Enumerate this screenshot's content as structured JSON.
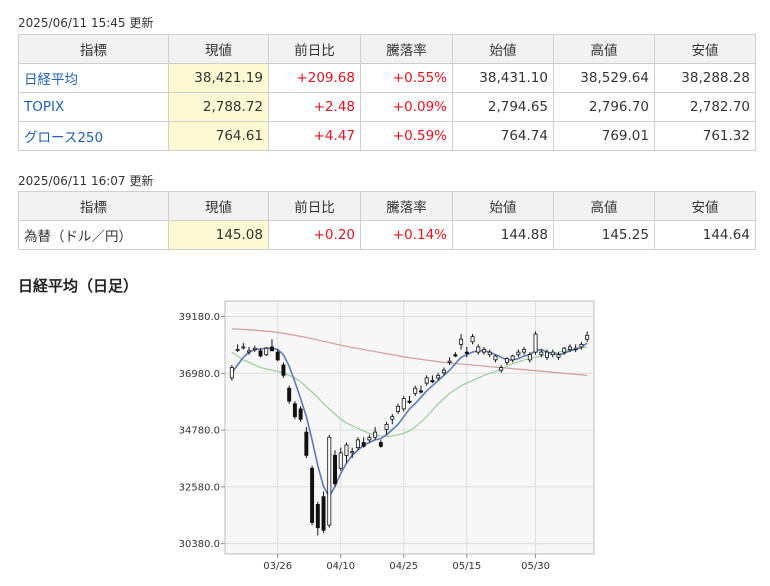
{
  "section1": {
    "timestamp": "2025/06/11 15:45 更新",
    "headers": [
      "指標",
      "現値",
      "前日比",
      "騰落率",
      "始値",
      "高値",
      "安値"
    ],
    "rows": [
      {
        "name": "日経平均",
        "current": "38,421.19",
        "change": "+209.68",
        "pct": "+0.55%",
        "open": "38,431.10",
        "high": "38,529.64",
        "low": "38,288.28"
      },
      {
        "name": "TOPIX",
        "current": "2,788.72",
        "change": "+2.48",
        "pct": "+0.09%",
        "open": "2,794.65",
        "high": "2,796.70",
        "low": "2,782.70"
      },
      {
        "name": "グロース250",
        "current": "764.61",
        "change": "+4.47",
        "pct": "+0.59%",
        "open": "764.74",
        "high": "769.01",
        "low": "761.32"
      }
    ]
  },
  "section2": {
    "timestamp": "2025/06/11 16:07 更新",
    "headers": [
      "指標",
      "現値",
      "前日比",
      "騰落率",
      "始値",
      "高値",
      "安値"
    ],
    "rows": [
      {
        "name": "為替（ドル／円）",
        "current": "145.08",
        "change": "+0.20",
        "pct": "+0.14%",
        "open": "144.88",
        "high": "145.25",
        "low": "144.64"
      }
    ]
  },
  "chart_heading": "日経平均（日足）",
  "colors": {
    "positive": "#e0141f",
    "link": "#1f5fb4",
    "highlight": "#fdf9d3",
    "ma_short": "#5b7ab8",
    "ma_mid": "#9fd09f",
    "ma_long": "#d8a0a0"
  },
  "chart_data": {
    "type": "candlestick",
    "title": "",
    "xlabel": "",
    "ylabel": "",
    "ylim": [
      29980,
      39780
    ],
    "yticks": [
      "39180.0",
      "36980.0",
      "34780.0",
      "32580.0",
      "30380.0"
    ],
    "xticks": [
      {
        "label": "03/26",
        "index": 8
      },
      {
        "label": "04/10",
        "index": 19
      },
      {
        "label": "04/25",
        "index": 30
      },
      {
        "label": "05/15",
        "index": 41
      },
      {
        "label": "05/30",
        "index": 53
      }
    ],
    "grid": true,
    "candles": [
      {
        "o": 36800,
        "h": 37300,
        "l": 36700,
        "c": 37200
      },
      {
        "o": 37900,
        "h": 38100,
        "l": 37800,
        "c": 37900
      },
      {
        "o": 38000,
        "h": 38150,
        "l": 37900,
        "c": 38000
      },
      {
        "o": 37800,
        "h": 38000,
        "l": 37700,
        "c": 37850
      },
      {
        "o": 37900,
        "h": 38050,
        "l": 37800,
        "c": 37950
      },
      {
        "o": 37850,
        "h": 37950,
        "l": 37600,
        "c": 37650
      },
      {
        "o": 37700,
        "h": 38000,
        "l": 37650,
        "c": 37950
      },
      {
        "o": 38000,
        "h": 38300,
        "l": 37900,
        "c": 37850
      },
      {
        "o": 37800,
        "h": 37900,
        "l": 37450,
        "c": 37500
      },
      {
        "o": 37300,
        "h": 37400,
        "l": 36800,
        "c": 36900
      },
      {
        "o": 36400,
        "h": 36500,
        "l": 35800,
        "c": 35900
      },
      {
        "o": 35800,
        "h": 35900,
        "l": 35200,
        "c": 35300
      },
      {
        "o": 35600,
        "h": 35700,
        "l": 35100,
        "c": 35200
      },
      {
        "o": 34700,
        "h": 34900,
        "l": 33700,
        "c": 33800
      },
      {
        "o": 33300,
        "h": 33400,
        "l": 31100,
        "c": 31200
      },
      {
        "o": 31900,
        "h": 32000,
        "l": 30700,
        "c": 31000
      },
      {
        "o": 32200,
        "h": 32400,
        "l": 30800,
        "c": 30900
      },
      {
        "o": 31100,
        "h": 34600,
        "l": 31000,
        "c": 34500
      },
      {
        "o": 33800,
        "h": 34000,
        "l": 32600,
        "c": 32700
      },
      {
        "o": 33300,
        "h": 34100,
        "l": 33200,
        "c": 33900
      },
      {
        "o": 33800,
        "h": 34300,
        "l": 33500,
        "c": 34200
      },
      {
        "o": 33900,
        "h": 34100,
        "l": 33700,
        "c": 33950
      },
      {
        "o": 34100,
        "h": 34500,
        "l": 34000,
        "c": 34400
      },
      {
        "o": 34300,
        "h": 34500,
        "l": 34100,
        "c": 34150
      },
      {
        "o": 34400,
        "h": 34600,
        "l": 34300,
        "c": 34500
      },
      {
        "o": 34500,
        "h": 34900,
        "l": 34400,
        "c": 34700
      },
      {
        "o": 34300,
        "h": 34400,
        "l": 34100,
        "c": 34150
      },
      {
        "o": 34800,
        "h": 35100,
        "l": 34600,
        "c": 35000
      },
      {
        "o": 35200,
        "h": 35400,
        "l": 35000,
        "c": 35300
      },
      {
        "o": 35500,
        "h": 35800,
        "l": 35400,
        "c": 35700
      },
      {
        "o": 35600,
        "h": 36100,
        "l": 35500,
        "c": 36000
      },
      {
        "o": 35900,
        "h": 36100,
        "l": 35800,
        "c": 35850
      },
      {
        "o": 36200,
        "h": 36500,
        "l": 36100,
        "c": 36400
      },
      {
        "o": 36300,
        "h": 36500,
        "l": 36200,
        "c": 36250
      },
      {
        "o": 36600,
        "h": 36900,
        "l": 36500,
        "c": 36800
      },
      {
        "o": 36700,
        "h": 36900,
        "l": 36600,
        "c": 36650
      },
      {
        "o": 36800,
        "h": 37000,
        "l": 36700,
        "c": 36900
      },
      {
        "o": 37000,
        "h": 37200,
        "l": 36900,
        "c": 37100
      },
      {
        "o": 37400,
        "h": 37600,
        "l": 37300,
        "c": 37450
      },
      {
        "o": 37700,
        "h": 37800,
        "l": 37600,
        "c": 37650
      },
      {
        "o": 38100,
        "h": 38500,
        "l": 37900,
        "c": 38300
      },
      {
        "o": 37800,
        "h": 38000,
        "l": 37600,
        "c": 37750
      },
      {
        "o": 38200,
        "h": 38500,
        "l": 38100,
        "c": 38400
      },
      {
        "o": 37800,
        "h": 38100,
        "l": 37700,
        "c": 38000
      },
      {
        "o": 37800,
        "h": 38000,
        "l": 37700,
        "c": 37900
      },
      {
        "o": 37700,
        "h": 37900,
        "l": 37600,
        "c": 37800
      },
      {
        "o": 37500,
        "h": 37700,
        "l": 37400,
        "c": 37650
      },
      {
        "o": 37100,
        "h": 37300,
        "l": 37000,
        "c": 37200
      },
      {
        "o": 37400,
        "h": 37600,
        "l": 37300,
        "c": 37550
      },
      {
        "o": 37500,
        "h": 37700,
        "l": 37400,
        "c": 37650
      },
      {
        "o": 37700,
        "h": 37900,
        "l": 37600,
        "c": 37800
      },
      {
        "o": 37800,
        "h": 38000,
        "l": 37700,
        "c": 37900
      },
      {
        "o": 37500,
        "h": 37800,
        "l": 37400,
        "c": 37700
      },
      {
        "o": 37800,
        "h": 38600,
        "l": 37700,
        "c": 38500
      },
      {
        "o": 37700,
        "h": 37900,
        "l": 37600,
        "c": 37800
      },
      {
        "o": 37600,
        "h": 37900,
        "l": 37500,
        "c": 37800
      },
      {
        "o": 37700,
        "h": 37900,
        "l": 37600,
        "c": 37800
      },
      {
        "o": 37600,
        "h": 37800,
        "l": 37500,
        "c": 37700
      },
      {
        "o": 37800,
        "h": 38000,
        "l": 37700,
        "c": 37950
      },
      {
        "o": 37900,
        "h": 38100,
        "l": 37800,
        "c": 38000
      },
      {
        "o": 37900,
        "h": 38100,
        "l": 37800,
        "c": 37950
      },
      {
        "o": 38000,
        "h": 38200,
        "l": 37900,
        "c": 38100
      },
      {
        "o": 38300,
        "h": 38600,
        "l": 38200,
        "c": 38450
      }
    ],
    "ma_short": [
      37000,
      37300,
      37600,
      37800,
      37900,
      37920,
      37950,
      37950,
      37900,
      37700,
      37250,
      36650,
      36000,
      35300,
      34400,
      33400,
      32600,
      32200,
      32600,
      33100,
      33500,
      33800,
      34000,
      34200,
      34300,
      34400,
      34450,
      34600,
      34800,
      35000,
      35300,
      35600,
      35800,
      36050,
      36300,
      36500,
      36700,
      36900,
      37100,
      37350,
      37600,
      37700,
      37800,
      37850,
      37850,
      37800,
      37700,
      37600,
      37500,
      37500,
      37550,
      37650,
      37700,
      37850,
      37900,
      37800,
      37750,
      37700,
      37750,
      37850,
      37900,
      38000,
      38150
    ],
    "ma_mid": [
      37800,
      37650,
      37500,
      37400,
      37300,
      37200,
      37150,
      37100,
      37050,
      37000,
      36900,
      36800,
      36650,
      36450,
      36250,
      36050,
      35800,
      35600,
      35400,
      35200,
      35050,
      34950,
      34850,
      34750,
      34650,
      34580,
      34550,
      34530,
      34550,
      34600,
      34650,
      34750,
      34900,
      35100,
      35300,
      35550,
      35800,
      36000,
      36200,
      36350,
      36500,
      36600,
      36700,
      36800,
      36900,
      36980,
      37050,
      37150,
      37250,
      37350,
      37420,
      37500,
      37550,
      37600,
      37650,
      37700,
      37750,
      37800,
      37850,
      37880,
      37920,
      37960,
      38000
    ],
    "ma_long": [
      38700,
      38690,
      38680,
      38670,
      38650,
      38630,
      38610,
      38590,
      38560,
      38530,
      38490,
      38450,
      38410,
      38370,
      38320,
      38270,
      38220,
      38170,
      38120,
      38070,
      38020,
      37980,
      37940,
      37900,
      37860,
      37820,
      37780,
      37740,
      37700,
      37660,
      37620,
      37580,
      37550,
      37520,
      37490,
      37460,
      37430,
      37400,
      37380,
      37360,
      37340,
      37320,
      37300,
      37280,
      37260,
      37240,
      37220,
      37200,
      37180,
      37160,
      37140,
      37120,
      37100,
      37080,
      37060,
      37040,
      37020,
      37000,
      36980,
      36960,
      36940,
      36920,
      36900
    ]
  }
}
